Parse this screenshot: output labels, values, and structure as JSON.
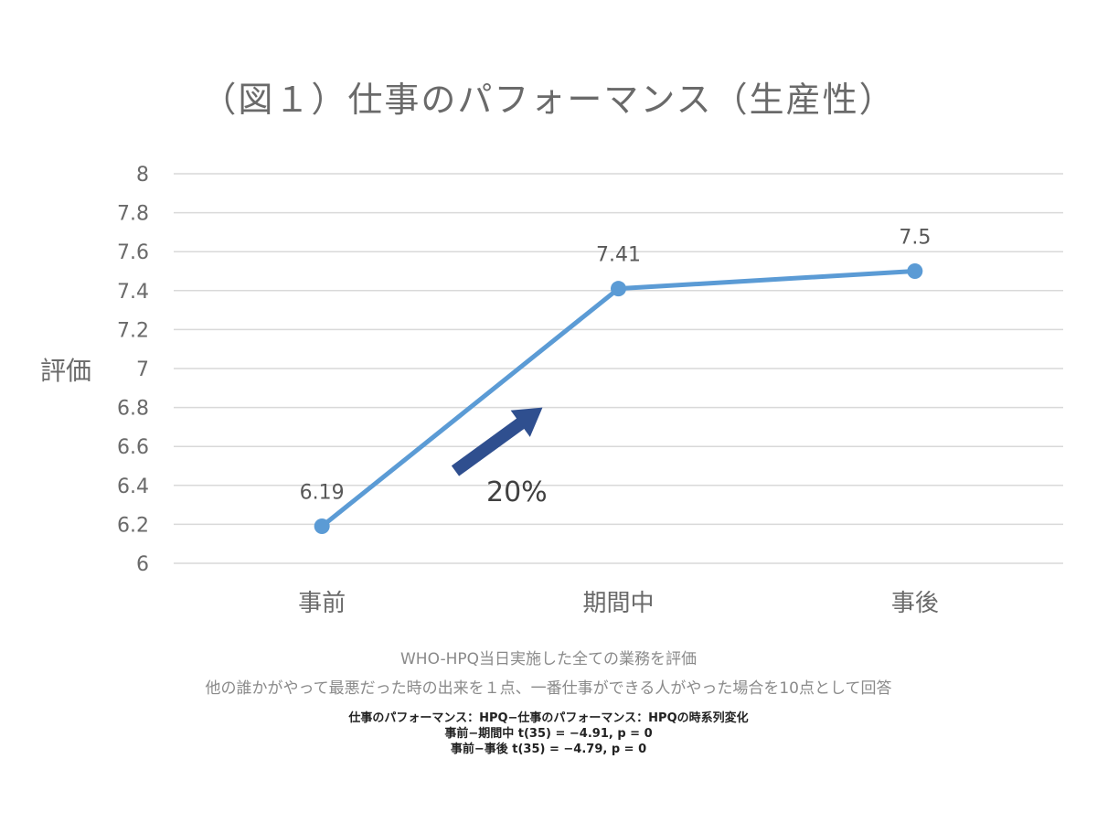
{
  "chart_data": {
    "type": "line",
    "title": "（図１）仕事のパフォーマンス（生産性）",
    "ylabel": "評価",
    "categories": [
      "事前",
      "期間中",
      "事後"
    ],
    "series": [
      {
        "values": [
          6.19,
          7.41,
          7.5
        ],
        "color": "#5b9bd5"
      }
    ],
    "data_labels": [
      "6.19",
      "7.41",
      "7.5"
    ],
    "y_ticks": [
      "8",
      "7.8",
      "7.6",
      "7.4",
      "7.2",
      "7",
      "6.8",
      "6.6",
      "6.4",
      "6.2",
      "6"
    ],
    "ylim": [
      6,
      8
    ],
    "grid": true,
    "annotation": {
      "text": "20%",
      "arrow_color": "#2f4f8f"
    }
  },
  "notes": {
    "line1": "WHO-HPQ当日実施した全ての業務を評価",
    "line2": "他の誰かがやって最悪だった時の出来を１点、一番仕事ができる人がやった場合を10点として回答"
  },
  "stats": {
    "line1": "仕事のパフォーマンス：HPQ−仕事のパフォーマンス：HPQの時系列変化",
    "line2": "事前−期間中 t(35) = −4.91, p = 0",
    "line3": "事前−事後 t(35) = −4.79, p = 0"
  }
}
